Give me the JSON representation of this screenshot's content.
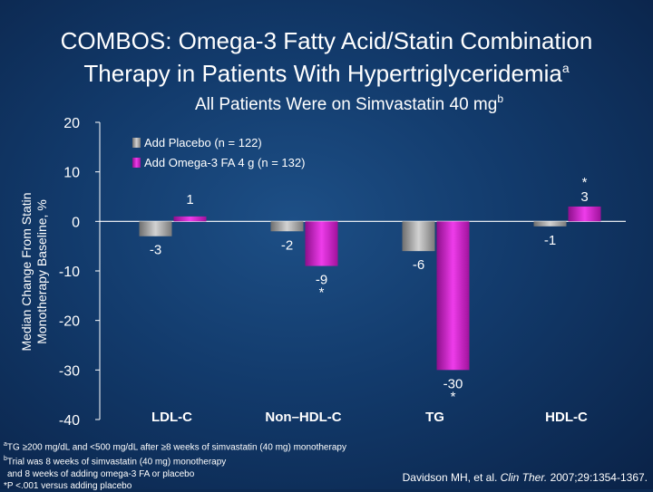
{
  "title": {
    "line1": "COMBOS: Omega-3 Fatty Acid/Statin Combination",
    "line2": "Therapy in Patients With Hypertriglyceridemia",
    "line2_sup": "a"
  },
  "subtitle": {
    "text": "All Patients Were on Simvastatin 40 mg",
    "sup": "b"
  },
  "chart_data": {
    "type": "bar",
    "ylabel_line1": "Median Change From Statin",
    "ylabel_line2": "Monotherapy Baseline, %",
    "ylim": [
      -40,
      20
    ],
    "yticks": [
      20,
      10,
      0,
      -10,
      -20,
      -30,
      -40
    ],
    "categories": [
      "LDL-C",
      "Non–HDL-C",
      "TG",
      "HDL-C"
    ],
    "series": [
      {
        "name": "Add Placebo (n = 122)",
        "values": [
          -3,
          -2,
          -6,
          -1
        ],
        "labels": [
          "-3",
          "-2",
          "-6",
          "-1"
        ],
        "color": "#9a9a9a"
      },
      {
        "name": "Add Omega-3 FA 4 g (n = 132)",
        "values": [
          1,
          -9,
          -30,
          3
        ],
        "labels": [
          "1",
          "-9",
          "-30",
          "3"
        ],
        "color": "#d61fd0",
        "significant": [
          false,
          true,
          true,
          true
        ]
      }
    ],
    "significance_marker": "*"
  },
  "footnotes": [
    {
      "sup": "a",
      "text": "TG ≥200 mg/dL and <500 mg/dL after ≥8 weeks of simvastatin (40 mg) monotherapy"
    },
    {
      "sup": "b",
      "text": "Trial was 8 weeks of simvastatin (40 mg) monotherapy"
    },
    {
      "sup": "",
      "text": "and 8 weeks of adding omega-3 FA or placebo"
    },
    {
      "sup": "",
      "text": "*P <.001 versus adding placebo"
    }
  ],
  "citation": {
    "before": "Davidson MH, et al. ",
    "journal": "Clin Ther.",
    "after": " 2007;29:1354-1367."
  }
}
